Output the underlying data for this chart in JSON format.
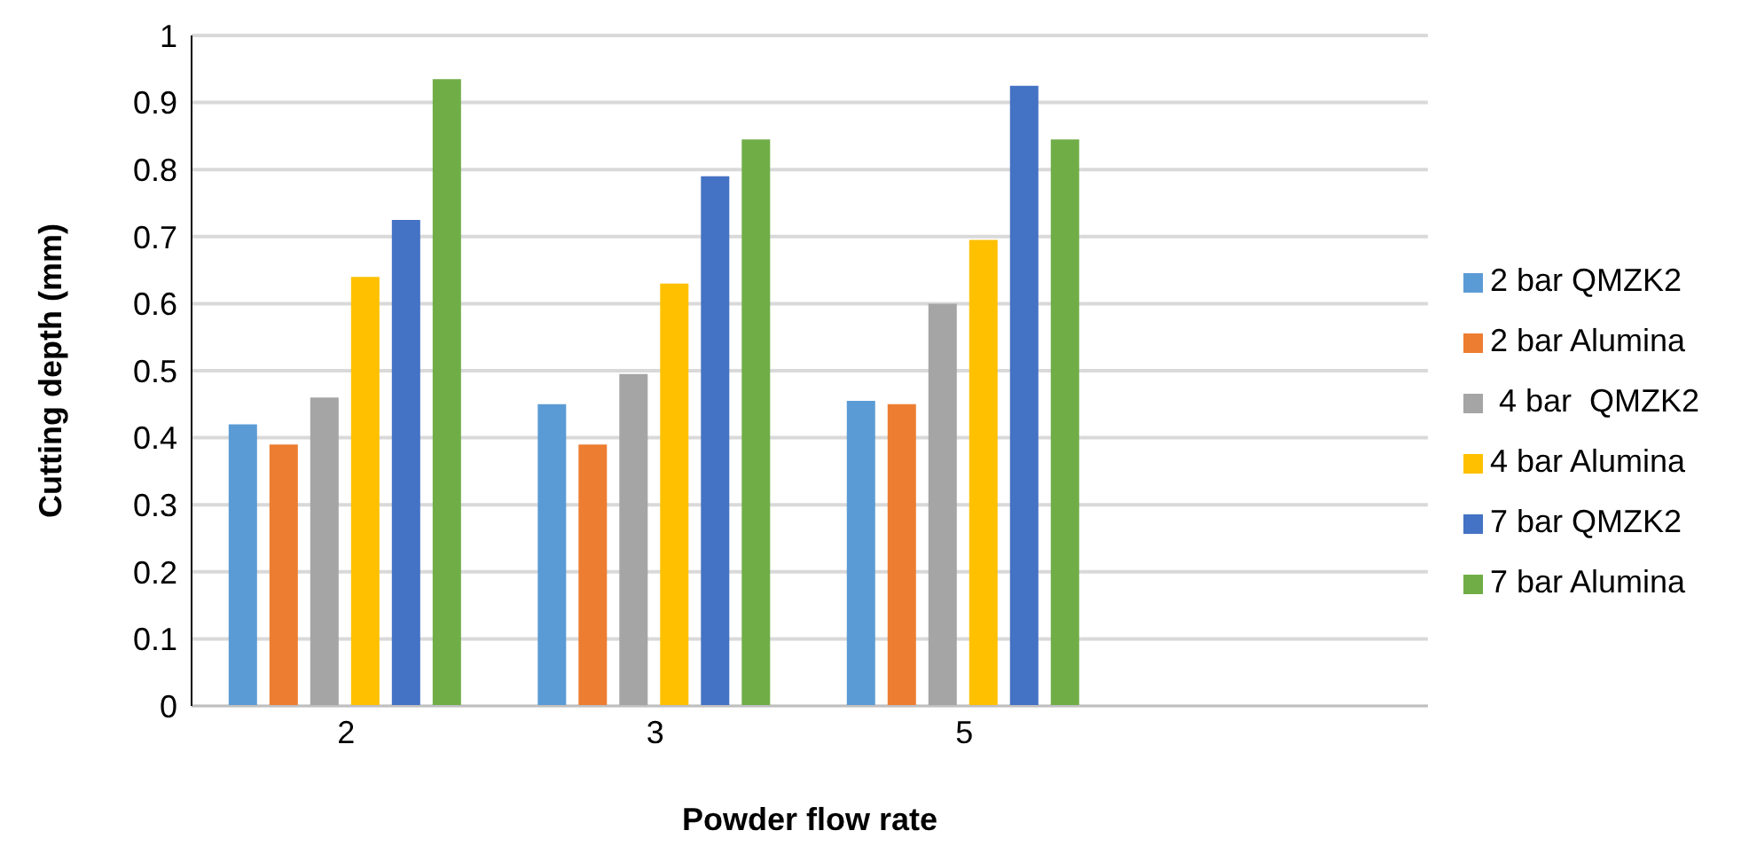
{
  "chart_data": {
    "type": "bar",
    "xlabel": "Powder flow rate",
    "ylabel": "Cutting depth  (mm)",
    "categories": [
      "2",
      "3",
      "5",
      null
    ],
    "series": [
      {
        "name": "2 bar QMZK2",
        "color": "#5b9bd5",
        "values": [
          0.42,
          0.45,
          0.455,
          null
        ]
      },
      {
        "name": "2 bar Alumina",
        "color": "#ed7d31",
        "values": [
          0.39,
          0.39,
          0.45,
          null
        ]
      },
      {
        "name": " 4 bar  QMZK2",
        "color": "#a5a5a5",
        "values": [
          0.46,
          0.495,
          0.6,
          null
        ]
      },
      {
        "name": "4 bar Alumina",
        "color": "#ffc000",
        "values": [
          0.64,
          0.63,
          0.695,
          null
        ]
      },
      {
        "name": "7 bar QMZK2",
        "color": "#4472c4",
        "values": [
          0.725,
          0.79,
          0.925,
          null
        ]
      },
      {
        "name": "7 bar Alumina",
        "color": "#70ad47",
        "values": [
          0.935,
          0.845,
          0.845,
          null
        ]
      }
    ],
    "ylim": [
      0,
      1
    ],
    "yticks": [
      0,
      0.1,
      0.2,
      0.3,
      0.4,
      0.5,
      0.6,
      0.7,
      0.8,
      0.9,
      1
    ],
    "grid": "y",
    "legend": "right"
  }
}
